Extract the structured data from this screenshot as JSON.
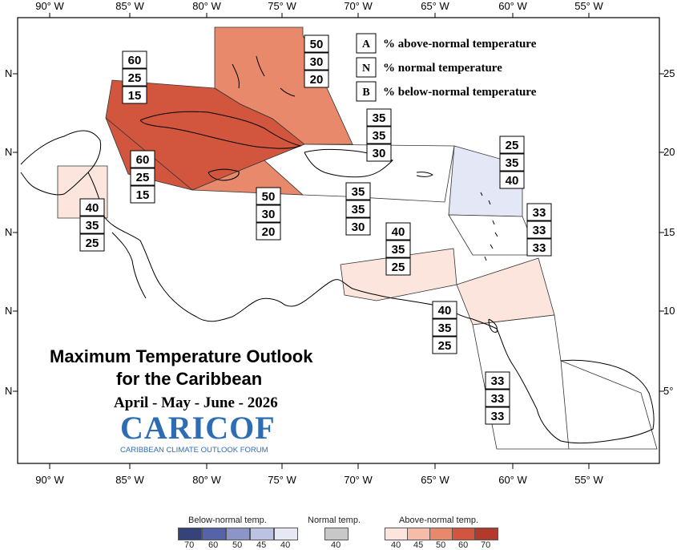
{
  "map": {
    "lon_ticks": [
      "90° W",
      "85° W",
      "80° W",
      "75° W",
      "70° W",
      "65° W",
      "60° W",
      "55° W"
    ],
    "lat_ticks_left": [
      "N",
      "N",
      "N",
      "N",
      "N"
    ],
    "lat_ticks_right": [
      "25",
      "20",
      "15",
      "10",
      "5°"
    ],
    "key": [
      {
        "letter": "A",
        "text": "% above-normal temperature"
      },
      {
        "letter": "N",
        "text": "% normal temperature"
      },
      {
        "letter": "B",
        "text": "% below-normal temperature"
      }
    ],
    "regions": [
      {
        "name": "bahamas",
        "values": [
          "50",
          "30",
          "20"
        ],
        "fill": "#e8896c"
      },
      {
        "name": "cuba",
        "values": [
          "60",
          "25",
          "15"
        ],
        "fill": "#d2553e"
      },
      {
        "name": "cayman-jamaica",
        "values": [
          "60",
          "25",
          "15"
        ],
        "fill": "#d2553e"
      },
      {
        "name": "haiti-dr",
        "values": [
          "35",
          "35",
          "30"
        ],
        "fill": "#ffffff"
      },
      {
        "name": "jamaica",
        "values": [
          "50",
          "30",
          "20"
        ],
        "fill": "#e8896c"
      },
      {
        "name": "puerto-rico",
        "values": [
          "35",
          "35",
          "30"
        ],
        "fill": "#ffffff"
      },
      {
        "name": "leewards",
        "values": [
          "25",
          "35",
          "40"
        ],
        "fill": "#e4e7f5"
      },
      {
        "name": "windwards",
        "values": [
          "33",
          "33",
          "33"
        ],
        "fill": "#ffffff"
      },
      {
        "name": "belize",
        "values": [
          "40",
          "35",
          "25"
        ],
        "fill": "#fbe5dc"
      },
      {
        "name": "aruba",
        "values": [
          "40",
          "35",
          "25"
        ],
        "fill": "#fbe5dc"
      },
      {
        "name": "trinidad",
        "values": [
          "40",
          "35",
          "25"
        ],
        "fill": "#fbe5dc"
      },
      {
        "name": "guianas",
        "values": [
          "33",
          "33",
          "33"
        ],
        "fill": "#ffffff"
      }
    ],
    "title_line1": "Maximum Temperature Outlook",
    "title_line2": "for the Caribbean",
    "season": "April - May - June - 2026",
    "logo_text": "CARICOF",
    "logo_subtitle": "CARIBBEAN CLIMATE OUTLOOK FORUM"
  },
  "legend": {
    "below_label": "Below-normal temp.",
    "normal_label": "Normal temp.",
    "above_label": "Above-normal temp.",
    "below_colors": [
      "#36427a",
      "#5563a8",
      "#8c95c8",
      "#bcc2e2",
      "#e6e8f4"
    ],
    "below_numbers": [
      "70",
      "60",
      "50",
      "45",
      "40"
    ],
    "normal_color": "#c8c8c8",
    "normal_number": "40",
    "above_colors": [
      "#fbe5dc",
      "#f7bca8",
      "#e8896c",
      "#d2553e",
      "#b23a2c"
    ],
    "above_numbers": [
      "40",
      "45",
      "50",
      "60",
      "70"
    ]
  }
}
